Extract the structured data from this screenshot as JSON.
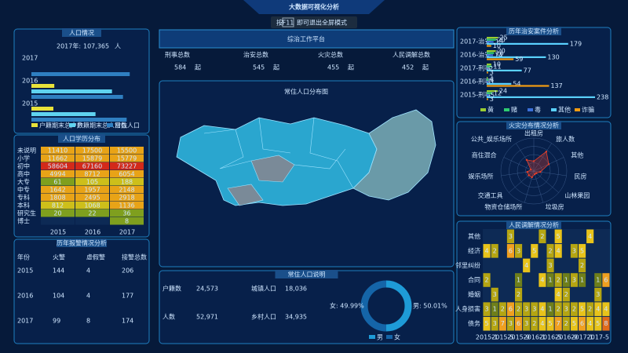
{
  "header": {
    "title": "大数据可视化分析",
    "hint_pre": "按",
    "key": "F11",
    "hint_post": "即可退出全屏模式"
  },
  "population": {
    "title": "人口情况",
    "year_label": "2017年:",
    "total": "107,365",
    "unit": "人",
    "categories": [
      "2017",
      "2016",
      "2015"
    ],
    "xlim": [
      0,
      120000
    ],
    "series": [
      {
        "name": "户籍期末总户数",
        "color": "#e8e23a",
        "values": [
          0,
          25000,
          24000
        ]
      },
      {
        "name": "户籍期末总人口数",
        "color": "#5fd3f0",
        "values": [
          0,
          88000,
          70000
        ]
      },
      {
        "name": "常住人口",
        "color": "#2f7fc1",
        "values": [
          107365,
          100000,
          104000
        ]
      }
    ]
  },
  "education": {
    "title": "人口学历分布",
    "rows": [
      "未说明",
      "小学",
      "初中",
      "高中",
      "大专",
      "中专",
      "专科",
      "本科",
      "研究生",
      "博士"
    ],
    "columns": [
      "2015",
      "2016",
      "2017"
    ],
    "values": [
      [
        11410,
        17500,
        15500
      ],
      [
        11662,
        15879,
        15779
      ],
      [
        58604,
        67160,
        73227
      ],
      [
        4994,
        8712,
        6054
      ],
      [
        61,
        105,
        188
      ],
      [
        1642,
        1957,
        2148
      ],
      [
        1808,
        2495,
        2918
      ],
      [
        812,
        1068,
        1136
      ],
      [
        20,
        22,
        36
      ],
      [
        null,
        null,
        8
      ]
    ],
    "colors": [
      "#3f6f2a",
      "#7f9f1e",
      "#cdbf1a",
      "#e8a317",
      "#d32a1a"
    ]
  },
  "alarms": {
    "title": "历年报警情况分析",
    "columns": [
      "年份",
      "火警",
      "虚假警",
      "接警总数"
    ],
    "rows": [
      [
        2015,
        144,
        4,
        206
      ],
      [
        2016,
        104,
        4,
        177
      ],
      [
        2017,
        99,
        8,
        174
      ]
    ]
  },
  "platform": {
    "title": "综治工作平台",
    "stats": [
      {
        "label": "刑事总数",
        "value": 584,
        "unit": "起"
      },
      {
        "label": "治安总数",
        "value": 545,
        "unit": "起"
      },
      {
        "label": "火灾总数",
        "value": 455,
        "unit": "起"
      },
      {
        "label": "人民调解总数",
        "value": 452,
        "unit": "起"
      }
    ]
  },
  "map": {
    "title": "常住人口分布图"
  },
  "residents": {
    "title": "常住人口说明",
    "stats": [
      {
        "label": "户籍数",
        "value": "24,573"
      },
      {
        "label": "城镇人口",
        "value": "18,036"
      },
      {
        "label": "人数",
        "value": "52,971"
      },
      {
        "label": "乡村人口",
        "value": "34,935"
      }
    ],
    "donut": [
      {
        "name": "男",
        "value": 50.01,
        "label": "男: 50.01%",
        "color": "#1e9bd7"
      },
      {
        "name": "女",
        "value": 49.99,
        "label": "女: 49.99%",
        "color": "#1565a8"
      }
    ]
  },
  "cases": {
    "title": "历年治安案件分析",
    "categories": [
      "2017-治安",
      "2016-治安",
      "2017-刑事",
      "2016-刑事",
      "2015-刑事"
    ],
    "xlim": [
      0,
      250
    ],
    "series": [
      {
        "name": "黄",
        "color": "#9acd32",
        "values": [
          25,
          20,
          10,
          2,
          24
        ]
      },
      {
        "name": "赌",
        "color": "#2ecc71",
        "values": [
          20,
          16,
          11,
          4,
          12
        ]
      },
      {
        "name": "毒",
        "color": "#3a6fd8",
        "values": [
          15,
          14,
          2,
          3,
          5
        ]
      },
      {
        "name": "其他",
        "color": "#5ad1ff",
        "values": [
          179,
          130,
          77,
          54,
          238
        ]
      },
      {
        "name": "诈骗",
        "color": "#f39c12",
        "values": [
          10,
          59,
          3,
          137,
          3
        ]
      }
    ]
  },
  "fire": {
    "title": "火灾分布情况分析",
    "axes": [
      "出租房",
      "旅人数",
      "其他",
      "民房",
      "山林果园",
      "垃圾房",
      "物资仓储场所",
      "交通工具",
      "娱乐场所",
      "商住混合",
      "公共_娱乐场所"
    ],
    "values": [
      3,
      7,
      5,
      2,
      1,
      1,
      2,
      2,
      2,
      1,
      4
    ],
    "rmax": 10,
    "color": "#e8402a"
  },
  "mediation": {
    "title": "人民调解情况分析",
    "rows": [
      "其他",
      "经济",
      "邻里纠纷",
      "合同",
      "婚姻",
      "人身损害",
      "债务"
    ],
    "xlabels": [
      "2015-1",
      "2015-5",
      "2015-9",
      "2016-1",
      "2016-5",
      "2016-9",
      "2017-1",
      "2017-5"
    ],
    "values": [
      [
        null,
        null,
        null,
        3,
        null,
        null,
        null,
        2,
        null,
        5,
        null,
        null,
        null,
        4,
        null,
        null
      ],
      [
        4,
        2,
        null,
        6,
        3,
        null,
        5,
        null,
        2,
        4,
        null,
        3,
        5,
        null,
        null,
        null
      ],
      [
        null,
        null,
        null,
        null,
        null,
        4,
        null,
        null,
        3,
        null,
        null,
        null,
        2,
        null,
        null,
        null
      ],
      [
        2,
        null,
        null,
        null,
        1,
        null,
        null,
        4,
        1,
        2,
        1,
        3,
        1,
        null,
        1,
        6
      ],
      [
        null,
        3,
        null,
        null,
        2,
        null,
        null,
        null,
        null,
        4,
        2,
        null,
        null,
        null,
        3,
        null
      ],
      [
        3,
        1,
        2,
        6,
        2,
        3,
        3,
        4,
        1,
        2,
        3,
        2,
        5,
        2,
        4,
        4
      ],
      [
        5,
        3,
        7,
        3,
        6,
        3,
        2,
        4,
        5,
        7,
        2,
        5,
        6,
        4,
        5,
        8
      ]
    ],
    "colors": [
      "#6f7f1a",
      "#b5a512",
      "#e8c31a",
      "#f0a020",
      "#e06a1a"
    ]
  }
}
